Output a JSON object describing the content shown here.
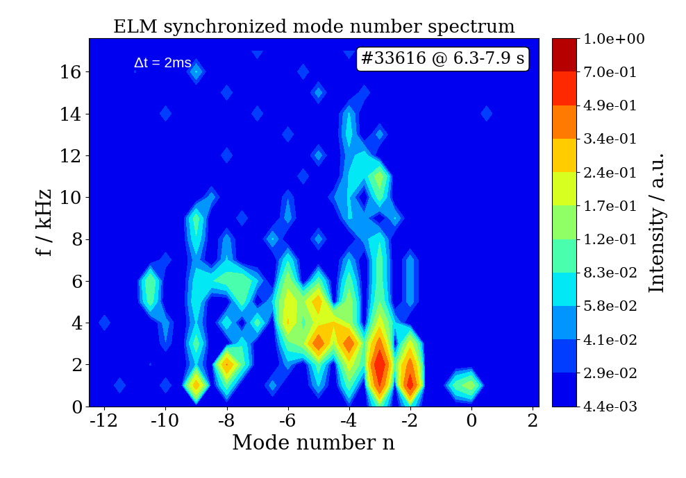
{
  "chart_data": {
    "type": "heatmap",
    "title": "ELM synchronized mode number spectrum",
    "x_label": "Mode number n",
    "y_label": "f / kHz",
    "colorbar_label": "Intensity / a.u.",
    "annotations": [
      "Δt = 2ms",
      "#33616 @ 6.3-7.9 s"
    ],
    "xlim": [
      -12.5,
      2.2
    ],
    "ylim": [
      0,
      17.6
    ],
    "xticks": [
      -12,
      -10,
      -8,
      -6,
      -4,
      -2,
      0,
      2
    ],
    "yticks": [
      0,
      2,
      4,
      6,
      8,
      10,
      12,
      14,
      16
    ],
    "colorbar_ticks": [
      {
        "value": 0.0044,
        "label": "4.4e-03"
      },
      {
        "value": 0.029,
        "label": "2.9e-02"
      },
      {
        "value": 0.041,
        "label": "4.1e-02"
      },
      {
        "value": 0.058,
        "label": "5.8e-02"
      },
      {
        "value": 0.083,
        "label": "8.3e-02"
      },
      {
        "value": 0.12,
        "label": "1.2e-01"
      },
      {
        "value": 0.17,
        "label": "1.7e-01"
      },
      {
        "value": 0.24,
        "label": "2.4e-01"
      },
      {
        "value": 0.34,
        "label": "3.4e-01"
      },
      {
        "value": 0.49,
        "label": "4.9e-01"
      },
      {
        "value": 0.7,
        "label": "7.0e-01"
      },
      {
        "value": 1.0,
        "label": "1.0e+00"
      }
    ],
    "x": [
      -12.5,
      -12,
      -11.5,
      -11,
      -10.5,
      -10,
      -9.5,
      -9,
      -8.5,
      -8,
      -7.5,
      -7,
      -6.5,
      -6,
      -5.5,
      -5,
      -4.5,
      -4,
      -3.5,
      -3,
      -2.5,
      -2,
      -1.5,
      -1,
      -0.5,
      0,
      0.5,
      1,
      1.5,
      2
    ],
    "y": [
      0,
      1,
      2,
      3,
      4,
      5,
      6,
      7,
      8,
      9,
      10,
      11,
      12,
      13,
      14,
      15,
      16,
      17
    ],
    "cells": [
      [
        0.01,
        0.01,
        0.01,
        0.01,
        0.01,
        0.01,
        0.01,
        0.01,
        0.01,
        0.01,
        0.01,
        0.01,
        0.01,
        0.01,
        0.01,
        0.01,
        0.01,
        0.03,
        0.01,
        0.1,
        0.01,
        0.08,
        0.01,
        0.01,
        0.01,
        0.01,
        0.01,
        0.01,
        0.01,
        0.01
      ],
      [
        0.01,
        0.01,
        0.04,
        0.01,
        0.01,
        0.04,
        0.01,
        0.3,
        0.01,
        0.1,
        0.01,
        0.01,
        0.05,
        0.01,
        0.01,
        0.06,
        0.01,
        0.1,
        0.01,
        0.5,
        0.01,
        0.6,
        0.01,
        0.01,
        0.1,
        0.15,
        0.01,
        0.01,
        0.01,
        0.01
      ],
      [
        0.01,
        0.01,
        0.01,
        0.01,
        0.03,
        0.01,
        0.01,
        0.06,
        0.01,
        0.35,
        0.1,
        0.01,
        0.01,
        0.05,
        0.01,
        0.1,
        0.01,
        0.2,
        0.08,
        0.7,
        0.1,
        0.4,
        0.01,
        0.01,
        0.01,
        0.01,
        0.01,
        0.01,
        0.01,
        0.01
      ],
      [
        0.01,
        0.01,
        0.01,
        0.01,
        0.01,
        0.04,
        0.01,
        0.1,
        0.01,
        0.01,
        0.08,
        0.01,
        0.01,
        0.1,
        0.15,
        0.45,
        0.15,
        0.45,
        0.1,
        0.4,
        0.01,
        0.2,
        0.01,
        0.01,
        0.01,
        0.01,
        0.01,
        0.01,
        0.01,
        0.01
      ],
      [
        0.01,
        0.04,
        0.01,
        0.01,
        0.01,
        0.05,
        0.01,
        0.06,
        0.01,
        0.08,
        0.01,
        0.1,
        0.01,
        0.25,
        0.1,
        0.2,
        0.25,
        0.15,
        0.01,
        0.2,
        0.06,
        0.01,
        0.01,
        0.01,
        0.01,
        0.01,
        0.01,
        0.01,
        0.01,
        0.01
      ],
      [
        0.01,
        0.01,
        0.01,
        0.01,
        0.1,
        0.01,
        0.01,
        0.08,
        0.01,
        0.01,
        0.1,
        0.01,
        0.06,
        0.2,
        0.15,
        0.3,
        0.01,
        0.15,
        0.01,
        0.12,
        0.01,
        0.05,
        0.01,
        0.01,
        0.01,
        0.01,
        0.01,
        0.01,
        0.01,
        0.01
      ],
      [
        0.01,
        0.01,
        0.01,
        0.01,
        0.12,
        0.01,
        0.01,
        0.07,
        0.08,
        0.1,
        0.12,
        0.06,
        0.01,
        0.15,
        0.01,
        0.1,
        0.01,
        0.1,
        0.01,
        0.1,
        0.01,
        0.05,
        0.01,
        0.01,
        0.01,
        0.01,
        0.01,
        0.01,
        0.01,
        0.01
      ],
      [
        0.01,
        0.01,
        0.01,
        0.01,
        0.01,
        0.04,
        0.01,
        0.05,
        0.01,
        0.06,
        0.01,
        0.01,
        0.01,
        0.08,
        0.01,
        0.01,
        0.01,
        0.06,
        0.01,
        0.1,
        0.01,
        0.05,
        0.01,
        0.01,
        0.01,
        0.01,
        0.01,
        0.01,
        0.01,
        0.01
      ],
      [
        0.01,
        0.01,
        0.01,
        0.01,
        0.01,
        0.01,
        0.01,
        0.08,
        0.01,
        0.05,
        0.01,
        0.01,
        0.06,
        0.01,
        0.01,
        0.05,
        0.01,
        0.01,
        0.05,
        0.08,
        0.01,
        0.01,
        0.01,
        0.01,
        0.01,
        0.01,
        0.01,
        0.01,
        0.01,
        0.01
      ],
      [
        0.01,
        0.01,
        0.01,
        0.01,
        0.01,
        0.01,
        0.01,
        0.1,
        0.01,
        0.01,
        0.04,
        0.01,
        0.01,
        0.05,
        0.01,
        0.01,
        0.01,
        0.06,
        0.05,
        0.01,
        0.06,
        0.01,
        0.01,
        0.01,
        0.01,
        0.01,
        0.01,
        0.01,
        0.01,
        0.01
      ],
      [
        0.01,
        0.01,
        0.01,
        0.01,
        0.01,
        0.01,
        0.01,
        0.01,
        0.05,
        0.01,
        0.01,
        0.01,
        0.01,
        0.04,
        0.01,
        0.01,
        0.04,
        0.06,
        0.01,
        0.1,
        0.01,
        0.01,
        0.01,
        0.01,
        0.01,
        0.01,
        0.01,
        0.01,
        0.01,
        0.01
      ],
      [
        0.01,
        0.01,
        0.01,
        0.01,
        0.01,
        0.01,
        0.01,
        0.01,
        0.01,
        0.01,
        0.01,
        0.01,
        0.01,
        0.01,
        0.04,
        0.01,
        0.01,
        0.06,
        0.06,
        0.15,
        0.01,
        0.01,
        0.01,
        0.01,
        0.01,
        0.01,
        0.01,
        0.01,
        0.01,
        0.01
      ],
      [
        0.01,
        0.01,
        0.01,
        0.01,
        0.01,
        0.01,
        0.01,
        0.01,
        0.01,
        0.04,
        0.01,
        0.01,
        0.01,
        0.01,
        0.01,
        0.05,
        0.01,
        0.05,
        0.07,
        0.01,
        0.01,
        0.01,
        0.01,
        0.01,
        0.01,
        0.01,
        0.01,
        0.01,
        0.01,
        0.01
      ],
      [
        0.01,
        0.01,
        0.01,
        0.01,
        0.01,
        0.01,
        0.01,
        0.01,
        0.01,
        0.01,
        0.01,
        0.01,
        0.01,
        0.04,
        0.01,
        0.01,
        0.01,
        0.07,
        0.01,
        0.05,
        0.01,
        0.01,
        0.01,
        0.01,
        0.01,
        0.01,
        0.01,
        0.01,
        0.01,
        0.01
      ],
      [
        0.01,
        0.01,
        0.01,
        0.01,
        0.01,
        0.04,
        0.01,
        0.01,
        0.01,
        0.01,
        0.01,
        0.04,
        0.01,
        0.01,
        0.01,
        0.01,
        0.01,
        0.06,
        0.01,
        0.01,
        0.01,
        0.01,
        0.01,
        0.01,
        0.01,
        0.01,
        0.04,
        0.01,
        0.01,
        0.01
      ],
      [
        0.01,
        0.01,
        0.01,
        0.01,
        0.01,
        0.01,
        0.01,
        0.01,
        0.01,
        0.04,
        0.01,
        0.01,
        0.01,
        0.01,
        0.01,
        0.05,
        0.01,
        0.01,
        0.04,
        0.01,
        0.01,
        0.01,
        0.01,
        0.01,
        0.01,
        0.01,
        0.01,
        0.01,
        0.01,
        0.01
      ],
      [
        0.01,
        0.01,
        0.01,
        0.03,
        0.01,
        0.01,
        0.01,
        0.06,
        0.01,
        0.01,
        0.01,
        0.01,
        0.01,
        0.01,
        0.04,
        0.01,
        0.01,
        0.01,
        0.01,
        0.01,
        0.01,
        0.01,
        0.01,
        0.01,
        0.01,
        0.01,
        0.01,
        0.01,
        0.01,
        0.01
      ],
      [
        0.01,
        0.01,
        0.01,
        0.01,
        0.01,
        0.01,
        0.01,
        0.01,
        0.01,
        0.01,
        0.01,
        0.04,
        0.01,
        0.01,
        0.01,
        0.01,
        0.01,
        0.04,
        0.01,
        0.01,
        0.01,
        0.01,
        0.01,
        0.01,
        0.01,
        0.01,
        0.01,
        0.01,
        0.01,
        0.01
      ]
    ]
  }
}
